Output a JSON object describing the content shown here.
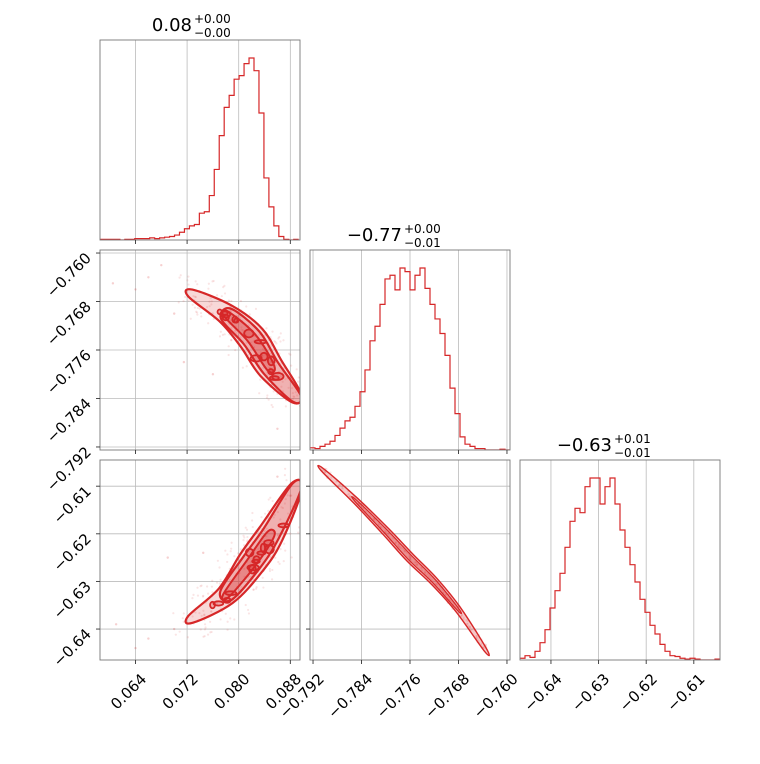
{
  "chart_data": {
    "type": "corner",
    "color": "#d62728",
    "parameters": [
      {
        "title_main": "0.08",
        "title_plus": "+0.00",
        "title_minus": "−0.00",
        "range": [
          0.0585,
          0.0895
        ],
        "ticks": [
          0.064,
          0.072,
          0.08,
          0.088
        ],
        "tick_labels": [
          "0.064",
          "0.072",
          "0.080",
          "0.088"
        ]
      },
      {
        "title_main": "−0.77",
        "title_plus": "+0.00",
        "title_minus": "−0.01",
        "range": [
          -0.7925,
          -0.7595
        ],
        "ticks": [
          -0.792,
          -0.784,
          -0.776,
          -0.768,
          -0.76
        ],
        "tick_labels": [
          "−0.792",
          "−0.784",
          "−0.776",
          "−0.768",
          "−0.760"
        ]
      },
      {
        "title_main": "−0.63",
        "title_plus": "+0.01",
        "title_minus": "−0.01",
        "range": [
          -0.6465,
          -0.6045
        ],
        "ticks": [
          -0.64,
          -0.63,
          -0.62,
          -0.61
        ],
        "tick_labels": [
          "−0.64",
          "−0.63",
          "−0.62",
          "−0.61"
        ]
      }
    ],
    "histograms": [
      {
        "param": 0,
        "bin_start": 0.0585,
        "bin_width": 0.00077,
        "counts": [
          1,
          1,
          1,
          1,
          0,
          1,
          1,
          2,
          2,
          2,
          3,
          2,
          3,
          4,
          5,
          7,
          11,
          16,
          20,
          22,
          38,
          40,
          63,
          100,
          148,
          188,
          205,
          228,
          233,
          250,
          258,
          240,
          180,
          88,
          47,
          20,
          5,
          1,
          0,
          1
        ]
      },
      {
        "param": 1,
        "bin_start": -0.7925,
        "bin_width": 0.000825,
        "counts": [
          3,
          2,
          5,
          8,
          12,
          20,
          30,
          40,
          45,
          60,
          80,
          110,
          150,
          170,
          200,
          235,
          240,
          220,
          250,
          245,
          220,
          240,
          250,
          222,
          200,
          180,
          160,
          130,
          85,
          50,
          18,
          8,
          5,
          2,
          2,
          0,
          0,
          0,
          1,
          0
        ]
      },
      {
        "param": 2,
        "bin_start": -0.6465,
        "bin_width": 0.00105,
        "counts": [
          2,
          5,
          3,
          10,
          20,
          35,
          60,
          80,
          100,
          130,
          160,
          175,
          170,
          200,
          210,
          210,
          180,
          200,
          210,
          180,
          150,
          130,
          110,
          90,
          70,
          55,
          40,
          30,
          18,
          10,
          5,
          4,
          2,
          1,
          2,
          1,
          0,
          0,
          0,
          1
        ]
      }
    ],
    "panels_2d": [
      {
        "x_param": 0,
        "y_param": 1,
        "samples": "scattered points and filled contours along a band from (0.072, −0.7667) to (0.0895, −0.784)",
        "band": [
          [
            0.0725,
            -0.7666
          ],
          [
            0.078,
            -0.77
          ],
          [
            0.082,
            -0.774
          ],
          [
            0.085,
            -0.779
          ],
          [
            0.089,
            -0.784
          ]
        ],
        "outliers": [
          [
            0.068,
            -0.762
          ],
          [
            0.066,
            -0.764
          ],
          [
            0.064,
            -0.766
          ],
          [
            0.07,
            -0.77
          ],
          [
            0.0715,
            -0.778
          ],
          [
            0.076,
            -0.78
          ],
          [
            0.0605,
            -0.765
          ],
          [
            0.086,
            -0.789
          ]
        ]
      },
      {
        "x_param": 0,
        "y_param": 2,
        "samples": "scattered points and filled contours along a band from (0.072, −0.638) to (0.0895, −0.610)",
        "band": [
          [
            0.0725,
            -0.638
          ],
          [
            0.078,
            -0.633
          ],
          [
            0.082,
            -0.626
          ],
          [
            0.085,
            -0.62
          ],
          [
            0.089,
            -0.61
          ]
        ],
        "outliers": [
          [
            0.064,
            -0.644
          ],
          [
            0.066,
            -0.642
          ],
          [
            0.07,
            -0.64
          ],
          [
            0.0745,
            -0.624
          ],
          [
            0.061,
            -0.639
          ],
          [
            0.086,
            -0.608
          ],
          [
            0.069,
            -0.625
          ],
          [
            0.088,
            -0.612
          ]
        ]
      },
      {
        "x_param": 1,
        "y_param": 2,
        "samples": "narrow diagonal ellipse from (−0.7905, −0.6065) to (−0.7635, −0.6445)",
        "band": [
          [
            -0.7905,
            -0.6065
          ],
          [
            -0.785,
            -0.613
          ],
          [
            -0.78,
            -0.6195
          ],
          [
            -0.776,
            -0.625
          ],
          [
            -0.772,
            -0.63
          ],
          [
            -0.768,
            -0.636
          ],
          [
            -0.7635,
            -0.6445
          ]
        ],
        "outliers": [
          [
            -0.79,
            -0.607
          ],
          [
            -0.764,
            -0.644
          ]
        ]
      }
    ]
  }
}
